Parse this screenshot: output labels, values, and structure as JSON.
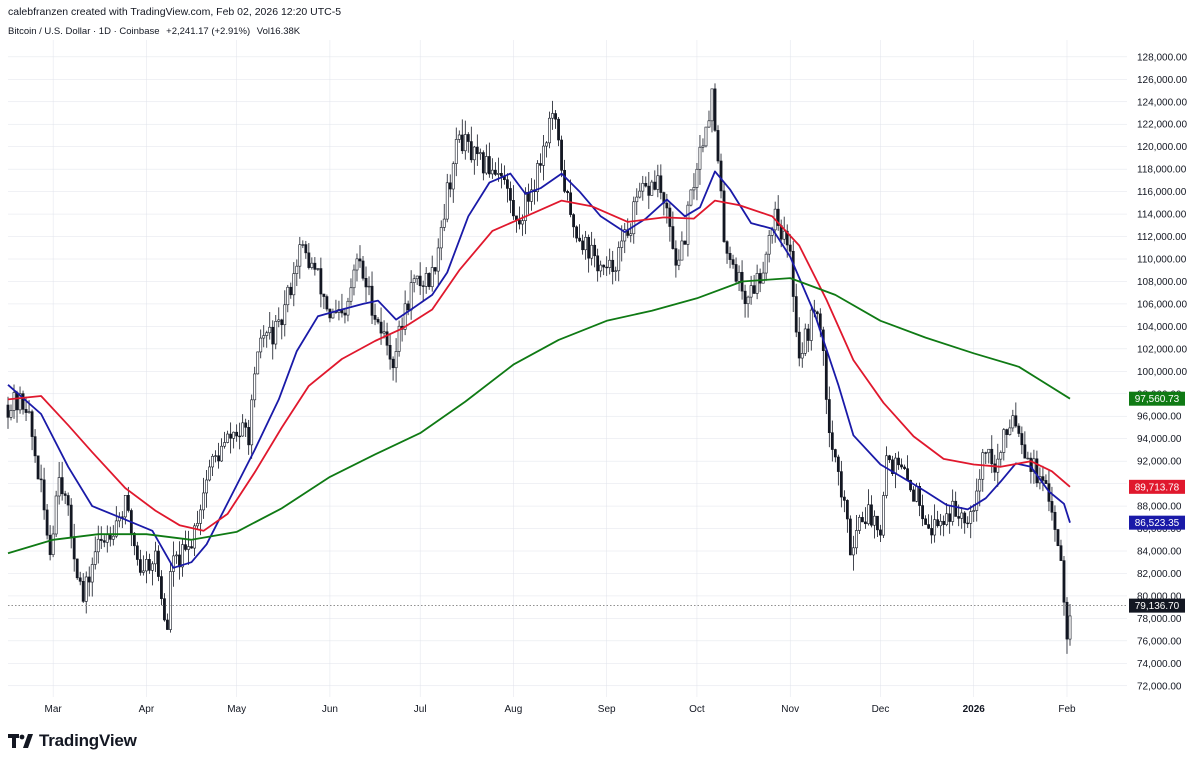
{
  "header": {
    "credit": "calebfranzen created with TradingView.com, Feb 02, 2026 12:20 UTC-5",
    "symbol": "Bitcoin / U.S. Dollar · 1D · Coinbase",
    "change": "+2,241.17 (+2.91%)",
    "volume": "Vol16.38K"
  },
  "branding": {
    "name": "TradingView"
  },
  "colors": {
    "ma_fast": "#1a1aa8",
    "ma_mid": "#e0182d",
    "ma_slow": "#0f7a14",
    "candle": "#131722",
    "gridline": "#e0e3eb",
    "price_line": "#6b6b6b"
  },
  "chart_data": {
    "type": "candlestick",
    "title": "Bitcoin / U.S. Dollar · 1D · Coinbase",
    "ylim": [
      71000,
      129500
    ],
    "y_ticks": [
      "72,000.00",
      "74,000.00",
      "76,000.00",
      "78,000.00",
      "80,000.00",
      "82,000.00",
      "84,000.00",
      "86,000.00",
      "88,000.00",
      "90,000.00",
      "92,000.00",
      "94,000.00",
      "96,000.00",
      "98,000.00",
      "100,000.00",
      "102,000.00",
      "104,000.00",
      "106,000.00",
      "108,000.00",
      "110,000.00",
      "112,000.00",
      "114,000.00",
      "116,000.00",
      "118,000.00",
      "120,000.00",
      "122,000.00",
      "124,000.00",
      "126,000.00",
      "128,000.00"
    ],
    "x_labels": [
      "Mar",
      "Apr",
      "May",
      "Jun",
      "Jul",
      "Aug",
      "Sep",
      "Oct",
      "Nov",
      "Dec",
      "2026",
      "Feb"
    ],
    "bold_x_label": "2026",
    "last_price": 79136.7,
    "last_price_label": "79,136.70",
    "price_path": [
      {
        "date": "2025-02-14",
        "price": 97000
      },
      {
        "date": "2025-02-20",
        "price": 97200
      },
      {
        "date": "2025-02-24",
        "price": 91000
      },
      {
        "date": "2025-02-28",
        "price": 84000
      },
      {
        "date": "2025-03-03",
        "price": 91500
      },
      {
        "date": "2025-03-05",
        "price": 88500
      },
      {
        "date": "2025-03-11",
        "price": 79500
      },
      {
        "date": "2025-03-15",
        "price": 84000
      },
      {
        "date": "2025-03-20",
        "price": 86000
      },
      {
        "date": "2025-03-25",
        "price": 88000
      },
      {
        "date": "2025-03-30",
        "price": 82500
      },
      {
        "date": "2025-04-04",
        "price": 83500
      },
      {
        "date": "2025-04-08",
        "price": 76500
      },
      {
        "date": "2025-04-09",
        "price": 82500
      },
      {
        "date": "2025-04-15",
        "price": 84000
      },
      {
        "date": "2025-04-22",
        "price": 91500
      },
      {
        "date": "2025-04-30",
        "price": 94500
      },
      {
        "date": "2025-05-05",
        "price": 94500
      },
      {
        "date": "2025-05-09",
        "price": 103000
      },
      {
        "date": "2025-05-15",
        "price": 103500
      },
      {
        "date": "2025-05-22",
        "price": 111000
      },
      {
        "date": "2025-05-27",
        "price": 109000
      },
      {
        "date": "2025-06-01",
        "price": 105000
      },
      {
        "date": "2025-06-06",
        "price": 104500
      },
      {
        "date": "2025-06-10",
        "price": 110000
      },
      {
        "date": "2025-06-17",
        "price": 104500
      },
      {
        "date": "2025-06-22",
        "price": 101000
      },
      {
        "date": "2025-06-28",
        "price": 107500
      },
      {
        "date": "2025-07-05",
        "price": 108500
      },
      {
        "date": "2025-07-10",
        "price": 116000
      },
      {
        "date": "2025-07-14",
        "price": 121000
      },
      {
        "date": "2025-07-20",
        "price": 118500
      },
      {
        "date": "2025-07-28",
        "price": 118000
      },
      {
        "date": "2025-08-02",
        "price": 113000
      },
      {
        "date": "2025-08-08",
        "price": 117000
      },
      {
        "date": "2025-08-14",
        "price": 123000
      },
      {
        "date": "2025-08-20",
        "price": 113500
      },
      {
        "date": "2025-08-28",
        "price": 110000
      },
      {
        "date": "2025-09-01",
        "price": 108500
      },
      {
        "date": "2025-09-06",
        "price": 111000
      },
      {
        "date": "2025-09-12",
        "price": 115500
      },
      {
        "date": "2025-09-18",
        "price": 117000
      },
      {
        "date": "2025-09-25",
        "price": 109000
      },
      {
        "date": "2025-10-01",
        "price": 118500
      },
      {
        "date": "2025-10-06",
        "price": 124500
      },
      {
        "date": "2025-10-10",
        "price": 112000
      },
      {
        "date": "2025-10-17",
        "price": 106500
      },
      {
        "date": "2025-10-22",
        "price": 108500
      },
      {
        "date": "2025-10-27",
        "price": 114500
      },
      {
        "date": "2025-11-01",
        "price": 110000
      },
      {
        "date": "2025-11-04",
        "price": 101500
      },
      {
        "date": "2025-11-10",
        "price": 106000
      },
      {
        "date": "2025-11-14",
        "price": 95500
      },
      {
        "date": "2025-11-21",
        "price": 84500
      },
      {
        "date": "2025-11-25",
        "price": 87500
      },
      {
        "date": "2025-12-01",
        "price": 86500
      },
      {
        "date": "2025-12-03",
        "price": 92500
      },
      {
        "date": "2025-12-08",
        "price": 91000
      },
      {
        "date": "2025-12-14",
        "price": 88500
      },
      {
        "date": "2025-12-18",
        "price": 86000
      },
      {
        "date": "2025-12-24",
        "price": 87500
      },
      {
        "date": "2025-12-31",
        "price": 87500
      },
      {
        "date": "2026-01-05",
        "price": 93500
      },
      {
        "date": "2026-01-08",
        "price": 91000
      },
      {
        "date": "2026-01-14",
        "price": 96500
      },
      {
        "date": "2026-01-19",
        "price": 92500
      },
      {
        "date": "2026-01-24",
        "price": 89500
      },
      {
        "date": "2026-01-27",
        "price": 88000
      },
      {
        "date": "2026-01-30",
        "price": 83500
      },
      {
        "date": "2026-02-01",
        "price": 77000
      },
      {
        "date": "2026-02-02",
        "price": 79136.7
      }
    ],
    "series": [
      {
        "last_label": "86,523.35",
        "color": "#1a1aa8",
        "points": [
          {
            "date": "2025-02-14",
            "value": 98800
          },
          {
            "date": "2025-02-25",
            "value": 96200
          },
          {
            "date": "2025-03-06",
            "value": 91500
          },
          {
            "date": "2025-03-14",
            "value": 88000
          },
          {
            "date": "2025-03-25",
            "value": 86800
          },
          {
            "date": "2025-04-03",
            "value": 85800
          },
          {
            "date": "2025-04-10",
            "value": 82500
          },
          {
            "date": "2025-04-16",
            "value": 83000
          },
          {
            "date": "2025-04-21",
            "value": 84600
          },
          {
            "date": "2025-04-29",
            "value": 88800
          },
          {
            "date": "2025-05-07",
            "value": 93000
          },
          {
            "date": "2025-05-15",
            "value": 97500
          },
          {
            "date": "2025-05-21",
            "value": 101800
          },
          {
            "date": "2025-05-28",
            "value": 104900
          },
          {
            "date": "2025-06-05",
            "value": 105500
          },
          {
            "date": "2025-06-12",
            "value": 106000
          },
          {
            "date": "2025-06-17",
            "value": 106300
          },
          {
            "date": "2025-06-23",
            "value": 104600
          },
          {
            "date": "2025-06-28",
            "value": 105500
          },
          {
            "date": "2025-07-05",
            "value": 106800
          },
          {
            "date": "2025-07-10",
            "value": 108800
          },
          {
            "date": "2025-07-17",
            "value": 113800
          },
          {
            "date": "2025-07-24",
            "value": 116800
          },
          {
            "date": "2025-07-31",
            "value": 117600
          },
          {
            "date": "2025-08-05",
            "value": 115800
          },
          {
            "date": "2025-08-10",
            "value": 116300
          },
          {
            "date": "2025-08-17",
            "value": 117600
          },
          {
            "date": "2025-08-23",
            "value": 116000
          },
          {
            "date": "2025-08-30",
            "value": 113800
          },
          {
            "date": "2025-09-07",
            "value": 112400
          },
          {
            "date": "2025-09-14",
            "value": 113600
          },
          {
            "date": "2025-09-21",
            "value": 115300
          },
          {
            "date": "2025-09-27",
            "value": 113800
          },
          {
            "date": "2025-10-02",
            "value": 114600
          },
          {
            "date": "2025-10-07",
            "value": 117800
          },
          {
            "date": "2025-10-12",
            "value": 116200
          },
          {
            "date": "2025-10-19",
            "value": 113200
          },
          {
            "date": "2025-10-26",
            "value": 112700
          },
          {
            "date": "2025-11-01",
            "value": 110200
          },
          {
            "date": "2025-11-09",
            "value": 105200
          },
          {
            "date": "2025-11-17",
            "value": 98800
          },
          {
            "date": "2025-11-22",
            "value": 94300
          },
          {
            "date": "2025-12-01",
            "value": 91700
          },
          {
            "date": "2025-12-08",
            "value": 90600
          },
          {
            "date": "2025-12-16",
            "value": 89300
          },
          {
            "date": "2025-12-23",
            "value": 88100
          },
          {
            "date": "2025-12-30",
            "value": 87700
          },
          {
            "date": "2026-01-05",
            "value": 88700
          },
          {
            "date": "2026-01-10",
            "value": 90200
          },
          {
            "date": "2026-01-15",
            "value": 91800
          },
          {
            "date": "2026-01-20",
            "value": 91500
          },
          {
            "date": "2026-01-26",
            "value": 89300
          },
          {
            "date": "2026-01-31",
            "value": 88200
          },
          {
            "date": "2026-02-02",
            "value": 86523
          }
        ]
      },
      {
        "last_label": "89,713.78",
        "color": "#e0182d",
        "points": [
          {
            "date": "2025-02-14",
            "value": 97500
          },
          {
            "date": "2025-02-25",
            "value": 97800
          },
          {
            "date": "2025-03-06",
            "value": 95200
          },
          {
            "date": "2025-03-14",
            "value": 92800
          },
          {
            "date": "2025-03-25",
            "value": 89600
          },
          {
            "date": "2025-04-04",
            "value": 87600
          },
          {
            "date": "2025-04-12",
            "value": 86300
          },
          {
            "date": "2025-04-20",
            "value": 85800
          },
          {
            "date": "2025-04-28",
            "value": 87300
          },
          {
            "date": "2025-05-07",
            "value": 91000
          },
          {
            "date": "2025-05-16",
            "value": 95000
          },
          {
            "date": "2025-05-25",
            "value": 98700
          },
          {
            "date": "2025-06-05",
            "value": 101100
          },
          {
            "date": "2025-06-16",
            "value": 102700
          },
          {
            "date": "2025-06-25",
            "value": 103800
          },
          {
            "date": "2025-07-05",
            "value": 105500
          },
          {
            "date": "2025-07-14",
            "value": 109000
          },
          {
            "date": "2025-07-25",
            "value": 112500
          },
          {
            "date": "2025-08-06",
            "value": 113900
          },
          {
            "date": "2025-08-17",
            "value": 115200
          },
          {
            "date": "2025-08-27",
            "value": 114700
          },
          {
            "date": "2025-09-08",
            "value": 113300
          },
          {
            "date": "2025-09-20",
            "value": 113700
          },
          {
            "date": "2025-09-30",
            "value": 113600
          },
          {
            "date": "2025-10-07",
            "value": 115200
          },
          {
            "date": "2025-10-15",
            "value": 114800
          },
          {
            "date": "2025-10-26",
            "value": 113800
          },
          {
            "date": "2025-11-04",
            "value": 111200
          },
          {
            "date": "2025-11-13",
            "value": 106400
          },
          {
            "date": "2025-11-22",
            "value": 101000
          },
          {
            "date": "2025-12-02",
            "value": 97200
          },
          {
            "date": "2025-12-12",
            "value": 94200
          },
          {
            "date": "2025-12-22",
            "value": 92200
          },
          {
            "date": "2026-01-01",
            "value": 91700
          },
          {
            "date": "2026-01-10",
            "value": 91500
          },
          {
            "date": "2026-01-20",
            "value": 92000
          },
          {
            "date": "2026-01-27",
            "value": 91100
          },
          {
            "date": "2026-02-02",
            "value": 89714
          }
        ]
      },
      {
        "last_label": "97,560.73",
        "color": "#0f7a14",
        "points": [
          {
            "date": "2025-02-14",
            "value": 83800
          },
          {
            "date": "2025-03-01",
            "value": 85000
          },
          {
            "date": "2025-03-16",
            "value": 85500
          },
          {
            "date": "2025-04-01",
            "value": 85500
          },
          {
            "date": "2025-04-16",
            "value": 85000
          },
          {
            "date": "2025-05-01",
            "value": 85700
          },
          {
            "date": "2025-05-16",
            "value": 87800
          },
          {
            "date": "2025-06-01",
            "value": 90600
          },
          {
            "date": "2025-06-16",
            "value": 92600
          },
          {
            "date": "2025-07-01",
            "value": 94500
          },
          {
            "date": "2025-07-16",
            "value": 97300
          },
          {
            "date": "2025-08-01",
            "value": 100600
          },
          {
            "date": "2025-08-16",
            "value": 102800
          },
          {
            "date": "2025-09-01",
            "value": 104500
          },
          {
            "date": "2025-09-16",
            "value": 105400
          },
          {
            "date": "2025-10-01",
            "value": 106500
          },
          {
            "date": "2025-10-16",
            "value": 108000
          },
          {
            "date": "2025-11-01",
            "value": 108300
          },
          {
            "date": "2025-11-16",
            "value": 106800
          },
          {
            "date": "2025-12-01",
            "value": 104500
          },
          {
            "date": "2025-12-16",
            "value": 103000
          },
          {
            "date": "2026-01-01",
            "value": 101600
          },
          {
            "date": "2026-01-16",
            "value": 100400
          },
          {
            "date": "2026-02-02",
            "value": 97561
          }
        ]
      }
    ]
  }
}
